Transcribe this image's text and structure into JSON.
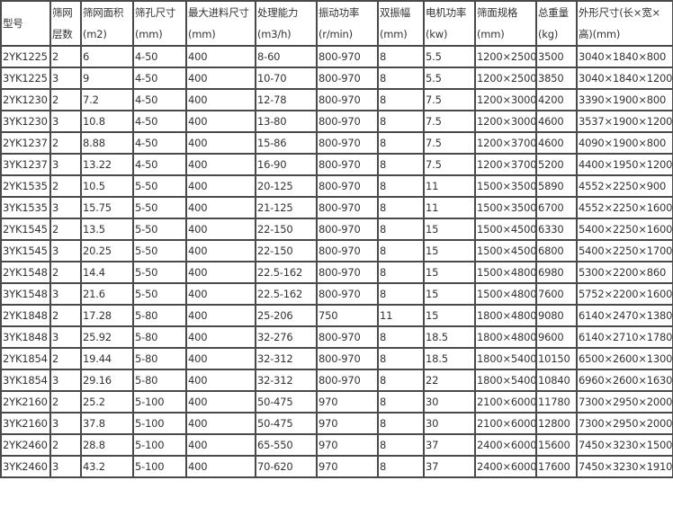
{
  "table": {
    "headers": [
      [
        "型号"
      ],
      [
        "筛网",
        "层数"
      ],
      [
        "筛网面积",
        "(m2)"
      ],
      [
        "筛孔尺寸",
        "(mm)"
      ],
      [
        "最大进料尺寸",
        "(mm)"
      ],
      [
        "处理能力",
        "(m3/h)"
      ],
      [
        "振动功率",
        "(r/min)"
      ],
      [
        "双振幅",
        "(mm)"
      ],
      [
        "电机功率",
        "(kw)"
      ],
      [
        "筛面规格",
        "(mm)"
      ],
      [
        "总重量",
        "(kg)"
      ],
      [
        "外形尺寸(长×宽×",
        "高)(mm)"
      ]
    ],
    "rows": [
      [
        "2YK1225",
        "2",
        "6",
        "4-50",
        "400",
        "8-60",
        "800-970",
        "8",
        "5.5",
        "1200×2500",
        "3500",
        "3040×1840×800"
      ],
      [
        "3YK1225",
        "3",
        "9",
        "4-50",
        "400",
        "10-70",
        "800-970",
        "8",
        "5.5",
        "1200×2500",
        "3850",
        "3040×1840×1200"
      ],
      [
        "2YK1230",
        "2",
        "7.2",
        "4-50",
        "400",
        "12-78",
        "800-970",
        "8",
        "7.5",
        "1200×3000",
        "4200",
        "3390×1900×800"
      ],
      [
        "3YK1230",
        "3",
        "10.8",
        "4-50",
        "400",
        "13-80",
        "800-970",
        "8",
        "7.5",
        "1200×3000",
        "4600",
        "3537×1900×1200"
      ],
      [
        "2YK1237",
        "2",
        "8.88",
        "4-50",
        "400",
        "15-86",
        "800-970",
        "8",
        "7.5",
        "1200×3700",
        "4600",
        "4090×1900×800"
      ],
      [
        "3YK1237",
        "3",
        "13.22",
        "4-50",
        "400",
        "16-90",
        "800-970",
        "8",
        "7.5",
        "1200×3700",
        "5200",
        "4400×1950×1200"
      ],
      [
        "2YK1535",
        "2",
        "10.5",
        "5-50",
        "400",
        "20-125",
        "800-970",
        "8",
        "11",
        "1500×3500",
        "5890",
        "4552×2250×900"
      ],
      [
        "3YK1535",
        "3",
        "15.75",
        "5-50",
        "400",
        "21-125",
        "800-970",
        "8",
        "11",
        "1500×3500",
        "6700",
        "4552×2250×1600"
      ],
      [
        "2YK1545",
        "2",
        "13.5",
        "5-50",
        "400",
        "22-150",
        "800-970",
        "8",
        "15",
        "1500×4500",
        "6330",
        "5400×2250×1600"
      ],
      [
        "3YK1545",
        "3",
        "20.25",
        "5-50",
        "400",
        "22-150",
        "800-970",
        "8",
        "15",
        "1500×4500",
        "6800",
        "5400×2250×1700"
      ],
      [
        "2YK1548",
        "2",
        "14.4",
        "5-50",
        "400",
        "22.5-162",
        "800-970",
        "8",
        "15",
        "1500×4800",
        "6980",
        "5300×2200×860"
      ],
      [
        "3YK1548",
        "3",
        "21.6",
        "5-50",
        "400",
        "22.5-162",
        "800-970",
        "8",
        "15",
        "1500×4800",
        "7600",
        "5752×2200×1600"
      ],
      [
        "2YK1848",
        "2",
        "17.28",
        "5-80",
        "400",
        "25-206",
        "750",
        "11",
        "15",
        "1800×4800",
        "9080",
        "6140×2470×1380"
      ],
      [
        "3YK1848",
        "3",
        "25.92",
        "5-80",
        "400",
        "32-276",
        "800-970",
        "8",
        "18.5",
        "1800×4800",
        "9600",
        "6140×2710×1780"
      ],
      [
        "2YK1854",
        "2",
        "19.44",
        "5-80",
        "400",
        "32-312",
        "800-970",
        "8",
        "18.5",
        "1800×5400",
        "10150",
        "6500×2600×1300"
      ],
      [
        "3YK1854",
        "3",
        "29.16",
        "5-80",
        "400",
        "32-312",
        "800-970",
        "8",
        "22",
        "1800×5400",
        "10840",
        "6960×2600×1630"
      ],
      [
        "2YK2160",
        "2",
        "25.2",
        "5-100",
        "400",
        "50-475",
        "970",
        "8",
        "30",
        "2100×6000",
        "11780",
        "7300×2950×2000"
      ],
      [
        "3YK2160",
        "3",
        "37.8",
        "5-100",
        "400",
        "50-475",
        "970",
        "8",
        "30",
        "2100×6000",
        "12800",
        "7300×2950×2000"
      ],
      [
        "2YK2460",
        "2",
        "28.8",
        "5-100",
        "400",
        "65-550",
        "970",
        "8",
        "37",
        "2400×6000",
        "15600",
        "7450×3230×1500"
      ],
      [
        "3YK2460",
        "3",
        "43.2",
        "5-100",
        "400",
        "70-620",
        "970",
        "8",
        "37",
        "2400×6000",
        "17600",
        "7450×3230×1910"
      ]
    ]
  }
}
